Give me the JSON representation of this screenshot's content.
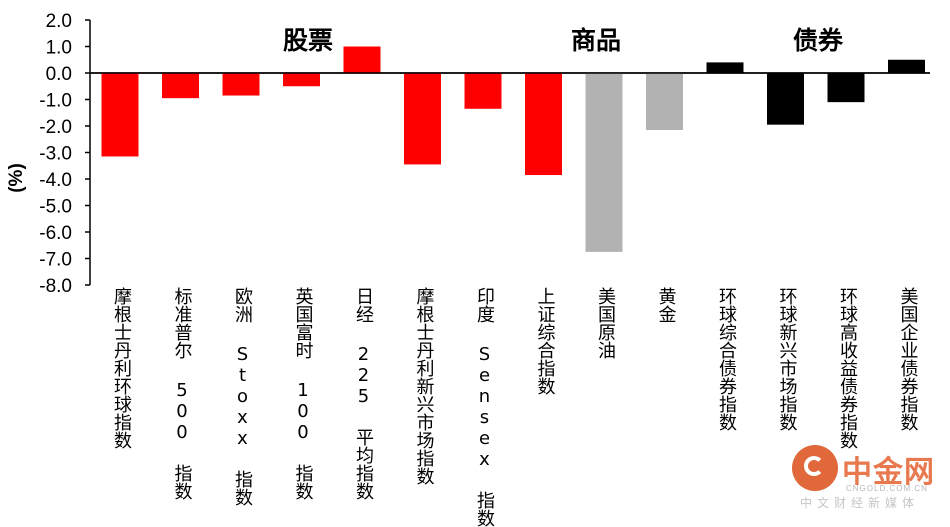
{
  "chart_data": {
    "type": "bar",
    "title": "",
    "xlabel": "",
    "ylabel": "(%)",
    "ylim": [
      -8.0,
      2.0
    ],
    "yticks": [
      "2.0",
      "1.0",
      "0.0",
      "-1.0",
      "-2.0",
      "-3.0",
      "-4.0",
      "-5.0",
      "-6.0",
      "-7.0",
      "-8.0"
    ],
    "grid": false,
    "legend": "none",
    "groups": [
      {
        "name": "股票",
        "color": "#ff0000"
      },
      {
        "name": "商品",
        "color": "#b2b2b2"
      },
      {
        "name": "债券",
        "color": "#000000"
      }
    ],
    "categories": [
      "摩根士丹利环球指数",
      "标准普尔 500 指数",
      "欧洲 Stoxx 指数",
      "英国富时 100 指数",
      "日经 225 平均指数",
      "摩根士丹利新兴市场指数",
      "印度 Sensex 指数",
      "上证综合指数",
      "美国原油",
      "黄金",
      "环球综合债券指数",
      "环球新兴市场指数",
      "环球高收益债券指数",
      "美国企业债券指数"
    ],
    "values": [
      -3.15,
      -0.95,
      -0.85,
      -0.5,
      1.0,
      -3.45,
      -1.35,
      -3.85,
      -6.75,
      -2.15,
      0.4,
      -1.95,
      -1.1,
      0.5
    ],
    "bar_group": [
      0,
      0,
      0,
      0,
      0,
      0,
      0,
      0,
      1,
      1,
      2,
      2,
      2,
      2
    ]
  },
  "watermark": {
    "brand": "中金网",
    "url": "CNGOLD.COM.CN",
    "tagline": "中文财经新媒体",
    "icon": "cngold-logo-icon"
  }
}
